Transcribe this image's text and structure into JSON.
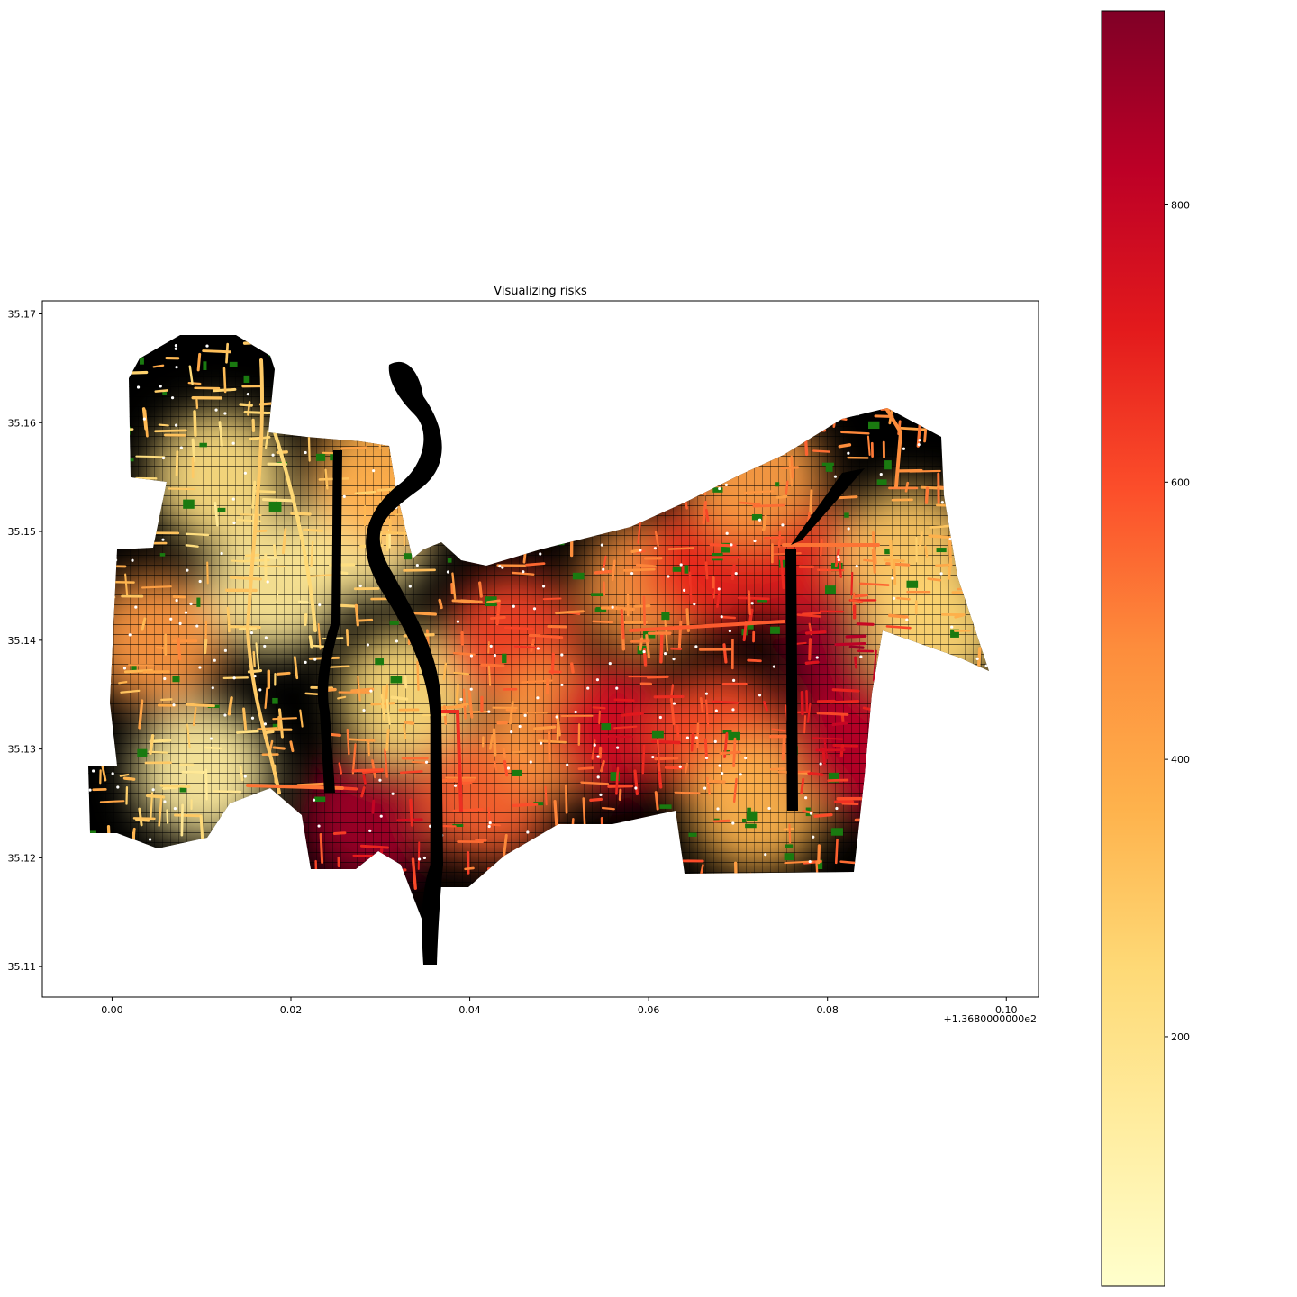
{
  "chart_data": {
    "type": "map",
    "title": "Visualizing risks",
    "xlabel": "",
    "ylabel": "",
    "x_offset_label": "+1.3680000000e2",
    "xlim": [
      -0.0078,
      0.1036
    ],
    "ylim": [
      35.1072,
      35.1712
    ],
    "x_ticks": [
      {
        "value": 0.0,
        "label": "0.00"
      },
      {
        "value": 0.02,
        "label": "0.02"
      },
      {
        "value": 0.04,
        "label": "0.04"
      },
      {
        "value": 0.06,
        "label": "0.06"
      },
      {
        "value": 0.08,
        "label": "0.08"
      },
      {
        "value": 0.1,
        "label": "0.10"
      }
    ],
    "y_ticks": [
      {
        "value": 35.11,
        "label": "35.11"
      },
      {
        "value": 35.12,
        "label": "35.12"
      },
      {
        "value": 35.13,
        "label": "35.13"
      },
      {
        "value": 35.14,
        "label": "35.14"
      },
      {
        "value": 35.15,
        "label": "35.15"
      },
      {
        "value": 35.16,
        "label": "35.16"
      },
      {
        "value": 35.17,
        "label": "35.17"
      }
    ],
    "grid": false,
    "colorbar": {
      "colormap": "YlOrRd",
      "range": [
        20,
        940
      ],
      "ticks": [
        {
          "value": 200,
          "label": "200"
        },
        {
          "value": 400,
          "label": "400"
        },
        {
          "value": 600,
          "label": "600"
        },
        {
          "value": 800,
          "label": "800"
        }
      ],
      "stops": [
        "#ffffcc",
        "#ffeda0",
        "#fed976",
        "#feb24c",
        "#fd8d3c",
        "#fc4e2a",
        "#e31a1c",
        "#bd0026",
        "#800026"
      ]
    },
    "layers": {
      "background_color": "#000000",
      "vegetation_color": "#1a7a10",
      "node_color": "#ffffff",
      "edge_colormap": "YlOrRd"
    },
    "risk_zones": [
      {
        "x": 0.005,
        "y": 35.14,
        "value": 450
      },
      {
        "x": 0.012,
        "y": 35.155,
        "value": 220
      },
      {
        "x": 0.018,
        "y": 35.145,
        "value": 160
      },
      {
        "x": 0.01,
        "y": 35.128,
        "value": 140
      },
      {
        "x": 0.028,
        "y": 35.15,
        "value": 170
      },
      {
        "x": 0.029,
        "y": 35.124,
        "value": 880
      },
      {
        "x": 0.033,
        "y": 35.135,
        "value": 240
      },
      {
        "x": 0.03,
        "y": 35.155,
        "value": 380
      },
      {
        "x": 0.045,
        "y": 35.14,
        "value": 620
      },
      {
        "x": 0.042,
        "y": 35.126,
        "value": 560
      },
      {
        "x": 0.05,
        "y": 35.132,
        "value": 420
      },
      {
        "x": 0.056,
        "y": 35.132,
        "value": 780
      },
      {
        "x": 0.06,
        "y": 35.145,
        "value": 450
      },
      {
        "x": 0.067,
        "y": 35.147,
        "value": 690
      },
      {
        "x": 0.068,
        "y": 35.131,
        "value": 600
      },
      {
        "x": 0.072,
        "y": 35.125,
        "value": 360
      },
      {
        "x": 0.072,
        "y": 35.155,
        "value": 430
      },
      {
        "x": 0.08,
        "y": 35.146,
        "value": 700
      },
      {
        "x": 0.083,
        "y": 35.139,
        "value": 900
      },
      {
        "x": 0.083,
        "y": 35.13,
        "value": 830
      },
      {
        "x": 0.089,
        "y": 35.148,
        "value": 300
      },
      {
        "x": 0.092,
        "y": 35.141,
        "value": 260
      }
    ]
  }
}
